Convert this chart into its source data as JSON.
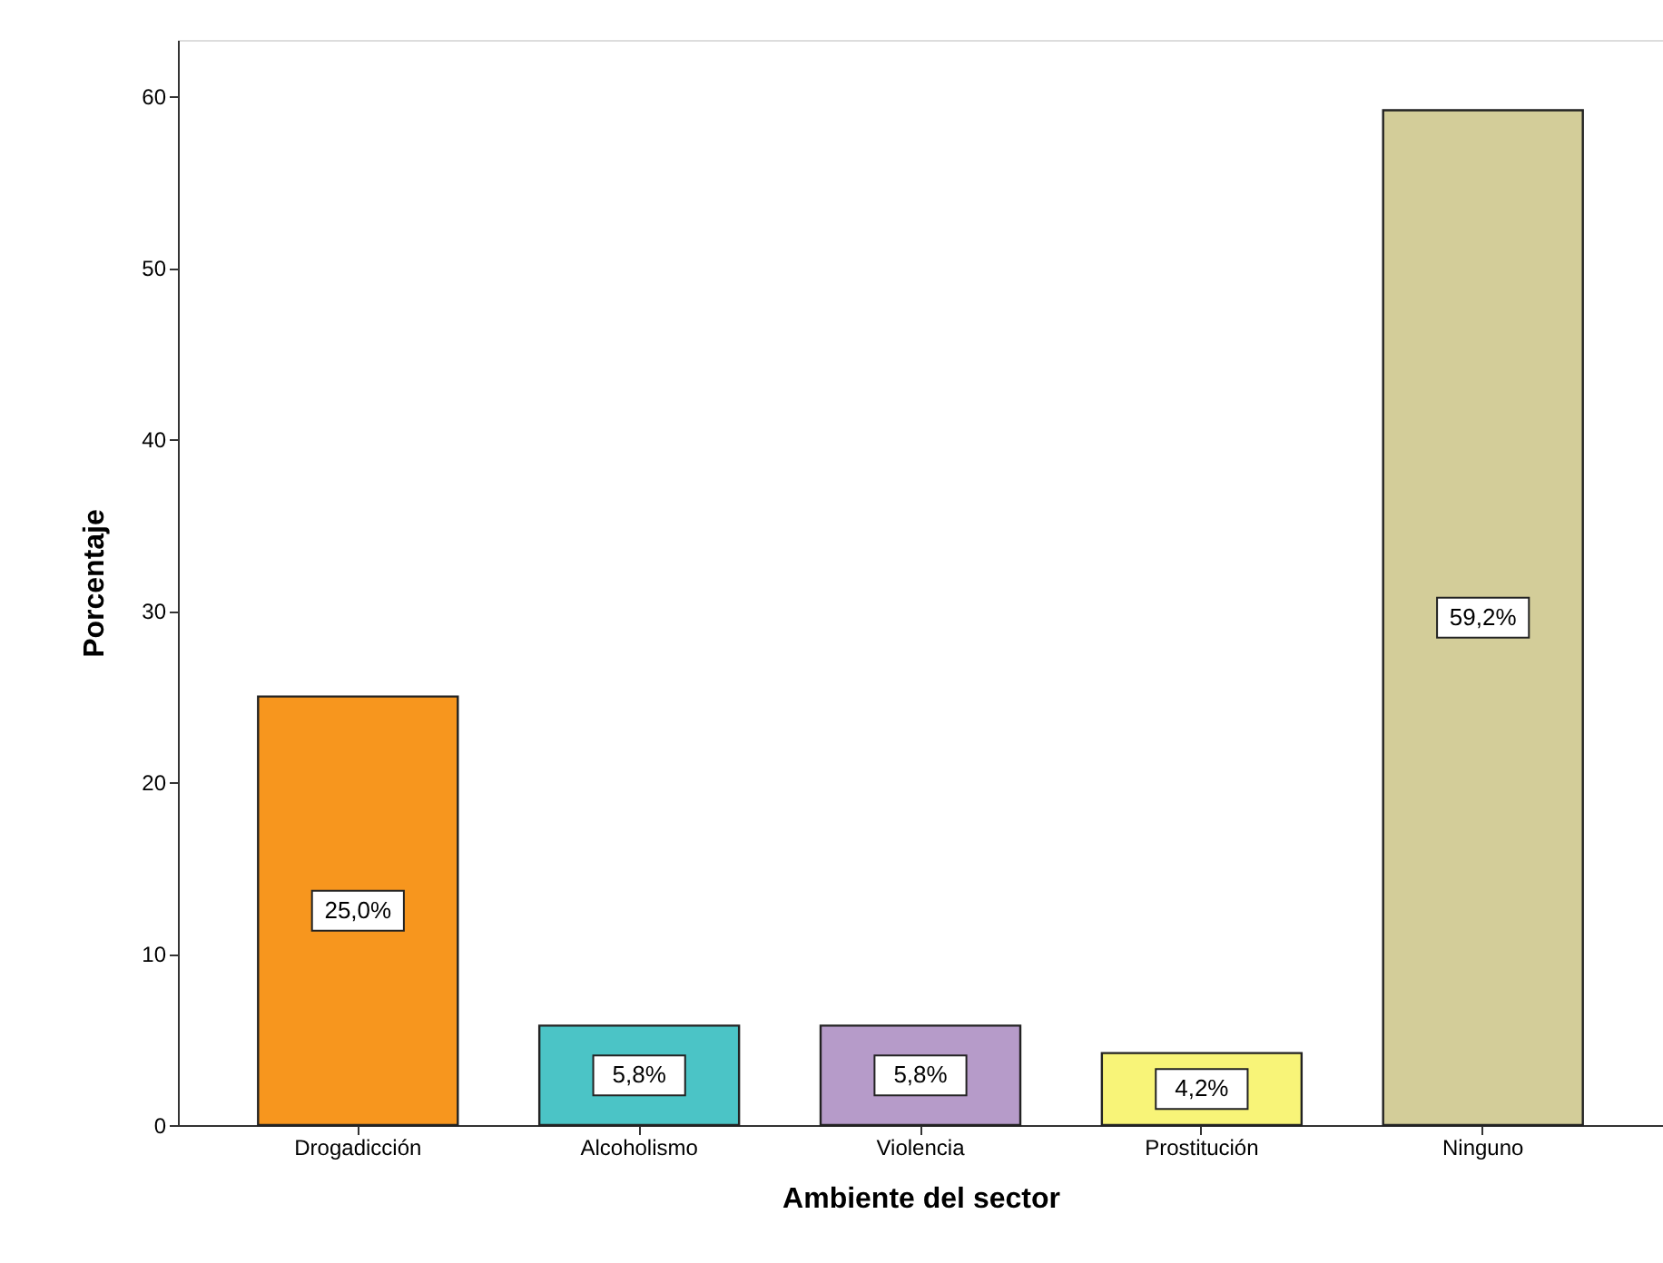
{
  "chart_data": {
    "type": "bar",
    "xlabel": "Ambiente del sector",
    "ylabel": "Porcentaje",
    "categories": [
      "Drogadicción",
      "Alcoholismo",
      "Violencia",
      "Prostitución",
      "Ninguno"
    ],
    "values": [
      25.0,
      5.8,
      5.8,
      4.2,
      59.2
    ],
    "colors": [
      "#f7961e",
      "#4bc4c6",
      "#b69bc9",
      "#f8f478",
      "#d3cd99"
    ],
    "value_labels": [
      "25,0%",
      "5,8%",
      "5,8%",
      "4,2%",
      "59,2%"
    ],
    "ylim": [
      0,
      63.3
    ],
    "yticks": [
      0,
      10,
      20,
      30,
      40,
      50,
      60
    ],
    "grid": false
  }
}
